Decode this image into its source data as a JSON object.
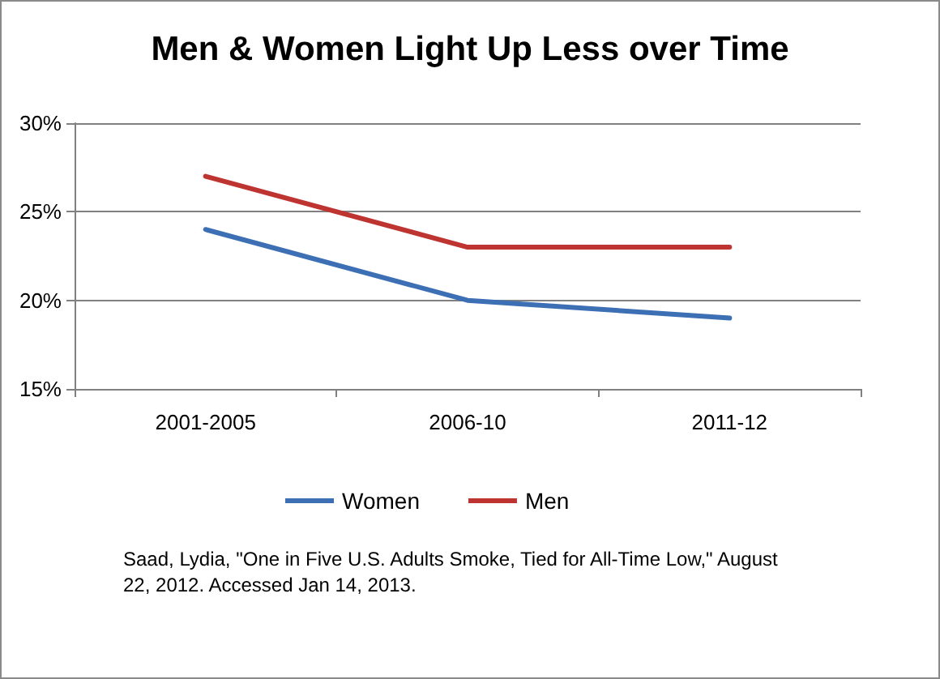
{
  "chart_data": {
    "type": "line",
    "title": "Men & Women Light Up Less over Time",
    "categories": [
      "2001-2005",
      "2006-10",
      "2011-12"
    ],
    "series": [
      {
        "name": "Women",
        "color": "#3d6fb5",
        "values": [
          24,
          20,
          19
        ]
      },
      {
        "name": "Men",
        "color": "#be3431",
        "values": [
          27,
          23,
          23
        ]
      }
    ],
    "ylim": [
      15,
      30
    ],
    "yticks": [
      {
        "value": 15,
        "label": "15%"
      },
      {
        "value": 20,
        "label": "20%"
      },
      {
        "value": 25,
        "label": "25%"
      },
      {
        "value": 30,
        "label": "30%"
      }
    ],
    "grid": "y",
    "legend": "bottom",
    "marker": "none",
    "line_style": "solid",
    "annotations": [
      "Saad, Lydia, \"One in Five U.S. Adults Smoke, Tied for All-Time Low,\" August 22, 2012. Accessed Jan 14, 2013."
    ]
  }
}
